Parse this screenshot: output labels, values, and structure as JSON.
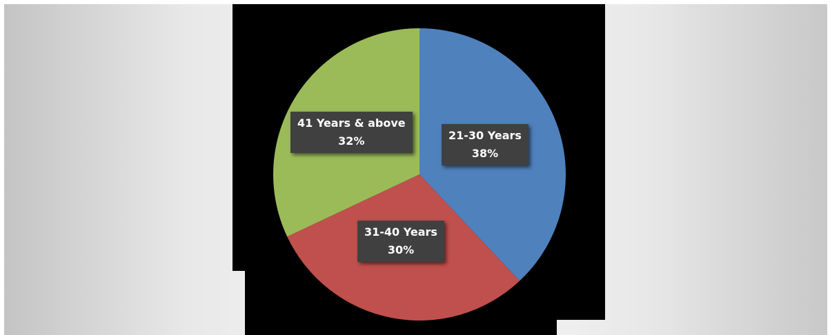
{
  "chart_data": {
    "type": "pie",
    "title": "",
    "categories": [
      "21-30 Years",
      "31-40 Years",
      "41 Years & above"
    ],
    "values": [
      38,
      30,
      32
    ],
    "value_labels": [
      "38%",
      "30%",
      "32%"
    ],
    "colors": [
      "#4F81BD",
      "#C0504D",
      "#9BBB59"
    ],
    "start_angle_deg": 0,
    "direction": "clockwise",
    "legend": "none",
    "data_labels": true
  }
}
